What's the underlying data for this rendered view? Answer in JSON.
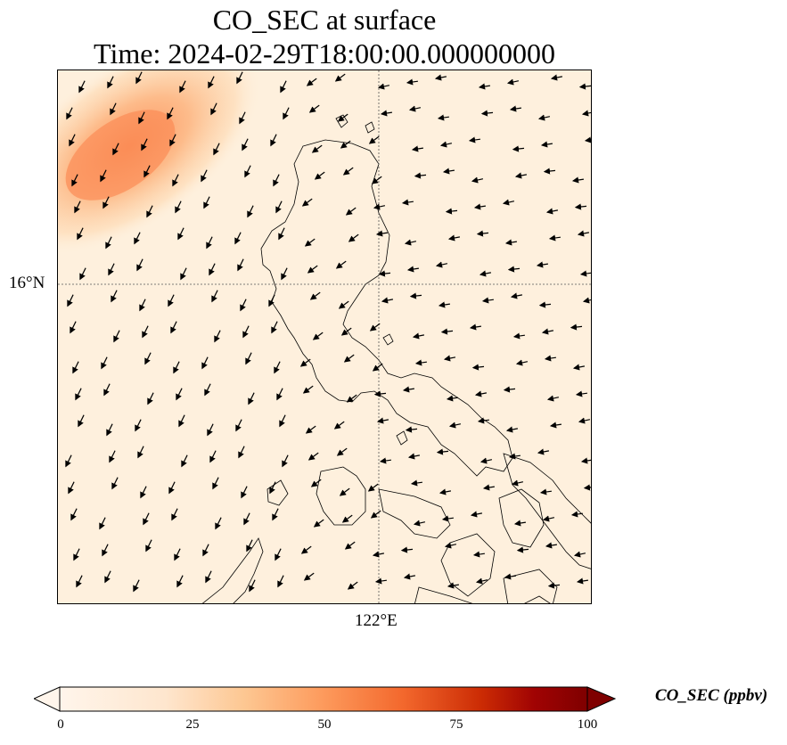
{
  "title": {
    "line1": "CO_SEC at surface",
    "line2": "Time: 2024-02-29T18:00:00.000000000"
  },
  "axes": {
    "lat_label": "16°N",
    "lon_label": "122°E"
  },
  "colorbar": {
    "label": "CO_SEC (ppbv)",
    "ticks": [
      "0",
      "25",
      "50",
      "75",
      "100"
    ],
    "min": 0,
    "max": 100,
    "colormap": [
      "#fff5eb",
      "#fdd3a7",
      "#fd8c4d",
      "#e8541b",
      "#c02c05",
      "#7f0000"
    ]
  },
  "map_data": {
    "field": "CO_SEC",
    "units": "ppbv",
    "background_color": "#fef0dd",
    "plume_color": "#fb9a62",
    "plume_location": "top-left corner",
    "plume_peak_approx_ppbv": 40,
    "wind_vectors": "arrows showing wind direction, mostly southwest over sea, westward on east side",
    "gridlines": "dotted",
    "coastlines": true
  }
}
